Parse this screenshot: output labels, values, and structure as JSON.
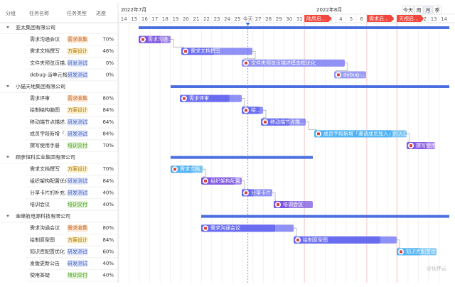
{
  "columns": [
    "分组",
    "任务名称",
    "任务类型",
    "进度"
  ],
  "months": [
    "2022年7月",
    "2022年8月"
  ],
  "days": [
    "14",
    "15",
    "16",
    "17",
    "18",
    "19",
    "20",
    "21",
    "22",
    "23",
    "24",
    "25",
    "今天",
    "27",
    "28",
    "29",
    "30",
    "31",
    "1",
    "2",
    "3",
    "4",
    "5",
    "6",
    "7",
    "8",
    "9",
    "10",
    "11",
    "12",
    "13",
    "14"
  ],
  "view_buttons": [
    "今天",
    "周",
    "月",
    "季"
  ],
  "milestones": [
    "陆房启...",
    "需求启...",
    "天视启..."
  ],
  "groups": [
    {
      "name": "亚太集团有限公司",
      "tasks": [
        {
          "name": "需求沟通会议",
          "type": "需求收集",
          "progress": "70%",
          "bar": "需求沟通..."
        },
        {
          "name": "需求文档撰写",
          "type": "方案设计",
          "progress": "46%",
          "bar": "需求文档撰写"
        },
        {
          "name": "文件夹预览页描...",
          "type": "研发测试",
          "progress": "0%",
          "bar": "文件夹预览页描述模态框优化"
        },
        {
          "name": "debug-当单元格...",
          "type": "研发测试",
          "progress": "0%",
          "bar": "debug-..."
        }
      ]
    },
    {
      "name": "小猫天地集团有限公司",
      "tasks": [
        {
          "name": "需求评审",
          "type": "需求收集",
          "progress": "80%",
          "bar": "需求评审"
        },
        {
          "name": "绘制结构脑图",
          "type": "方案设计",
          "progress": "84%",
          "bar": "绘..."
        },
        {
          "name": "移动端节点描述...",
          "type": "研发测试",
          "progress": "64%",
          "bar": "移动端节点描..."
        },
        {
          "name": "成员字段新增「...",
          "type": "研发测试",
          "progress": "84%",
          "bar": "成员字段新增「邀请成员加入」的入口"
        },
        {
          "name": "撰写使用手册",
          "type": "培训交付",
          "progress": "70%",
          "bar": "撰写使用..."
        }
      ]
    },
    {
      "name": "顾彦恒科实业集团有限公司",
      "tasks": [
        {
          "name": "需求文档撰写",
          "type": "方案设计",
          "progress": "70%",
          "bar": "需求文档..."
        },
        {
          "name": "组织架构配置优化",
          "type": "研发测试",
          "progress": "84%",
          "bar": "组织架构配置..."
        },
        {
          "name": "分享卡片的补充...",
          "type": "研发测试",
          "progress": "40%",
          "bar": "分享卡片..."
        },
        {
          "name": "培训会议",
          "type": "培训交付",
          "progress": "40%",
          "bar": "培训会议"
        }
      ]
    },
    {
      "name": "金峰航电源科技有限公司",
      "tasks": [
        {
          "name": "需求沟通会议",
          "type": "需求收集",
          "progress": "80%",
          "bar": "需求沟通会议"
        },
        {
          "name": "绘制原型图",
          "type": "方案设计",
          "progress": "84%",
          "bar": "绘制原型图"
        },
        {
          "name": "知识库配置优化",
          "type": "研发测试",
          "progress": "60%",
          "bar": "知识库配置优化"
        },
        {
          "name": "发版更新公告",
          "type": "研发测试",
          "progress": "40%"
        },
        {
          "name": "使用答疑",
          "type": "培训交付",
          "progress": "40%"
        }
      ]
    }
  ],
  "watermark": "@伙伴云"
}
